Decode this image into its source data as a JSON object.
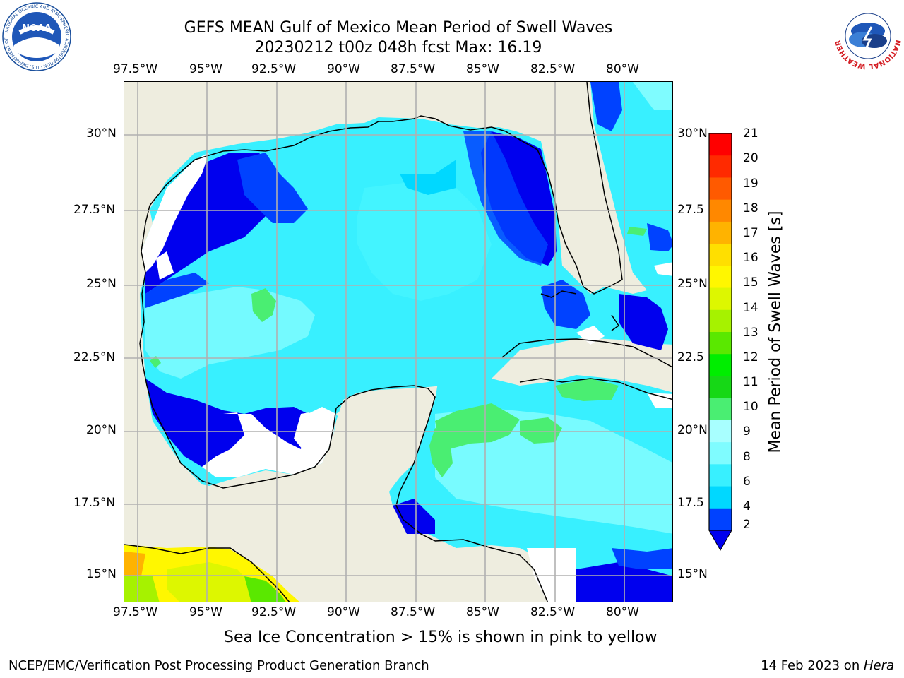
{
  "title": {
    "line1": "GEFS MEAN Gulf of Mexico Mean Period of Swell Waves",
    "line2": "20230212 t00z 048h fcst   Max: 16.19"
  },
  "logos": {
    "left": {
      "text": "NOAA",
      "ring_text": "NATIONAL OCEANIC AND ATMOSPHERIC ADMINISTRATION · U.S. DEPARTMENT OF COMMERCE",
      "icon": "noaa-logo-icon"
    },
    "right": {
      "ring_text": "NATIONAL WEATHER SERVICE",
      "icon": "nws-logo-icon"
    }
  },
  "map": {
    "lon_labels": [
      "97.5°W",
      "95°W",
      "92.5°W",
      "90°W",
      "87.5°W",
      "85°W",
      "82.5°W",
      "80°W"
    ],
    "lat_labels_left": [
      "30°N",
      "27.5°N",
      "25°N",
      "22.5°N",
      "20°N",
      "17.5°N",
      "15°N"
    ],
    "lat_labels_right": [
      "30°N",
      "27.5",
      "25°N",
      "22.5",
      "20°N",
      "17.5",
      "15°N"
    ],
    "land_color": "#eeeddf",
    "grid_color": "#b0b0b0"
  },
  "colorbar": {
    "label": "Mean Period of Swell Waves [s]",
    "ticks": [
      "2",
      "4",
      "6",
      "8",
      "9",
      "10",
      "11",
      "12",
      "13",
      "14",
      "15",
      "16",
      "17",
      "18",
      "19",
      "20",
      "21"
    ],
    "colors": [
      "#0042ff",
      "#00d8ff",
      "#38f0ff",
      "#7ffcff",
      "#a8ffff",
      "#4aee72",
      "#16d816",
      "#00ee00",
      "#5ae800",
      "#a6f200",
      "#ddf700",
      "#fff700",
      "#ffdf00",
      "#ffb300",
      "#ff8800",
      "#ff5a00",
      "#ff2a00",
      "#ff0000"
    ],
    "underflow_color": "#0000ee"
  },
  "caption": "Sea Ice Concentration > 15% is shown in pink to yellow",
  "footer": {
    "left": "NCEP/EMC/Verification Post Processing Product Generation Branch",
    "right_prefix": "14 Feb 2023 on ",
    "right_host": "Hera"
  }
}
